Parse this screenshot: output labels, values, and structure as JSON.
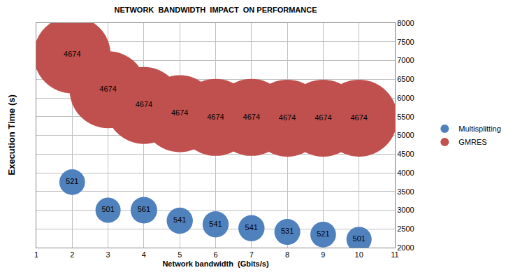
{
  "chart_data": {
    "type": "bubble",
    "title": "NETWORK  BANDWIDTH  IMPACT  ON PERFORMANCE",
    "x_label": "Network bandwidth  (Gbits/s)",
    "y_label": "Execution Time (s)",
    "x": [
      2,
      3,
      4,
      5,
      6,
      7,
      8,
      9,
      10
    ],
    "series": [
      {
        "name": "Multisplitting",
        "color": "#4f81bd",
        "values": [
          3750,
          3000,
          3000,
          2720,
          2620,
          2520,
          2420,
          2350,
          2220
        ],
        "sizes": [
          521,
          501,
          561,
          541,
          541,
          541,
          531,
          521,
          501
        ]
      },
      {
        "name": "GMRES",
        "color": "#c0504d",
        "values": [
          7150,
          6220,
          5800,
          5580,
          5480,
          5480,
          5460,
          5460,
          5460
        ],
        "sizes": [
          4674,
          4674,
          4674,
          4674,
          4674,
          4674,
          4674,
          4674,
          4674
        ]
      }
    ],
    "xlim": [
      1,
      11
    ],
    "xticks": [
      1,
      2,
      3,
      4,
      5,
      6,
      7,
      8,
      9,
      10,
      11
    ],
    "ylim": [
      2000,
      8000
    ],
    "yticks": [
      2000,
      2500,
      3000,
      3500,
      4000,
      4500,
      5000,
      5500,
      6000,
      6500,
      7000,
      7500,
      8000
    ],
    "grid": true,
    "legend": "right",
    "data_labels": true
  }
}
